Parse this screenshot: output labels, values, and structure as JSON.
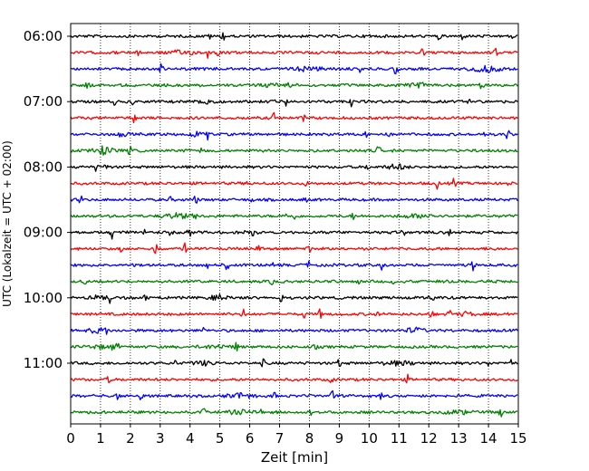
{
  "chart_data": {
    "type": "line",
    "title": "",
    "xlabel": "Zeit  [min]",
    "ylabel": "UTC (Lokalzeit = UTC + 02:00)",
    "xlim": [
      0,
      15
    ],
    "x_ticks": [
      "0",
      "1",
      "2",
      "3",
      "4",
      "5",
      "6",
      "7",
      "8",
      "9",
      "10",
      "11",
      "12",
      "13",
      "14",
      "15"
    ],
    "y_ticks": [
      "06:00",
      "07:00",
      "08:00",
      "09:00",
      "10:00",
      "11:00"
    ],
    "start_time": "06:00",
    "end_time": "12:00",
    "trace_minutes": 15,
    "grid": "vertical dotted lines at each minute",
    "trace_colors": [
      "#000000",
      "#ff0000",
      "#0000ff",
      "#008000"
    ],
    "traces": [
      {
        "start": "06:00",
        "color": "#000000"
      },
      {
        "start": "06:15",
        "color": "#ff0000"
      },
      {
        "start": "06:30",
        "color": "#0000ff"
      },
      {
        "start": "06:45",
        "color": "#008000"
      },
      {
        "start": "07:00",
        "color": "#000000"
      },
      {
        "start": "07:15",
        "color": "#ff0000"
      },
      {
        "start": "07:30",
        "color": "#0000ff"
      },
      {
        "start": "07:45",
        "color": "#008000"
      },
      {
        "start": "08:00",
        "color": "#000000"
      },
      {
        "start": "08:15",
        "color": "#ff0000"
      },
      {
        "start": "08:30",
        "color": "#0000ff"
      },
      {
        "start": "08:45",
        "color": "#008000"
      },
      {
        "start": "09:00",
        "color": "#000000"
      },
      {
        "start": "09:15",
        "color": "#ff0000"
      },
      {
        "start": "09:30",
        "color": "#0000ff"
      },
      {
        "start": "09:45",
        "color": "#008000"
      },
      {
        "start": "10:00",
        "color": "#000000"
      },
      {
        "start": "10:15",
        "color": "#ff0000"
      },
      {
        "start": "10:30",
        "color": "#0000ff"
      },
      {
        "start": "10:45",
        "color": "#008000"
      },
      {
        "start": "11:00",
        "color": "#000000"
      },
      {
        "start": "11:15",
        "color": "#ff0000"
      },
      {
        "start": "11:30",
        "color": "#0000ff"
      },
      {
        "start": "11:45",
        "color": "#008000"
      }
    ]
  }
}
